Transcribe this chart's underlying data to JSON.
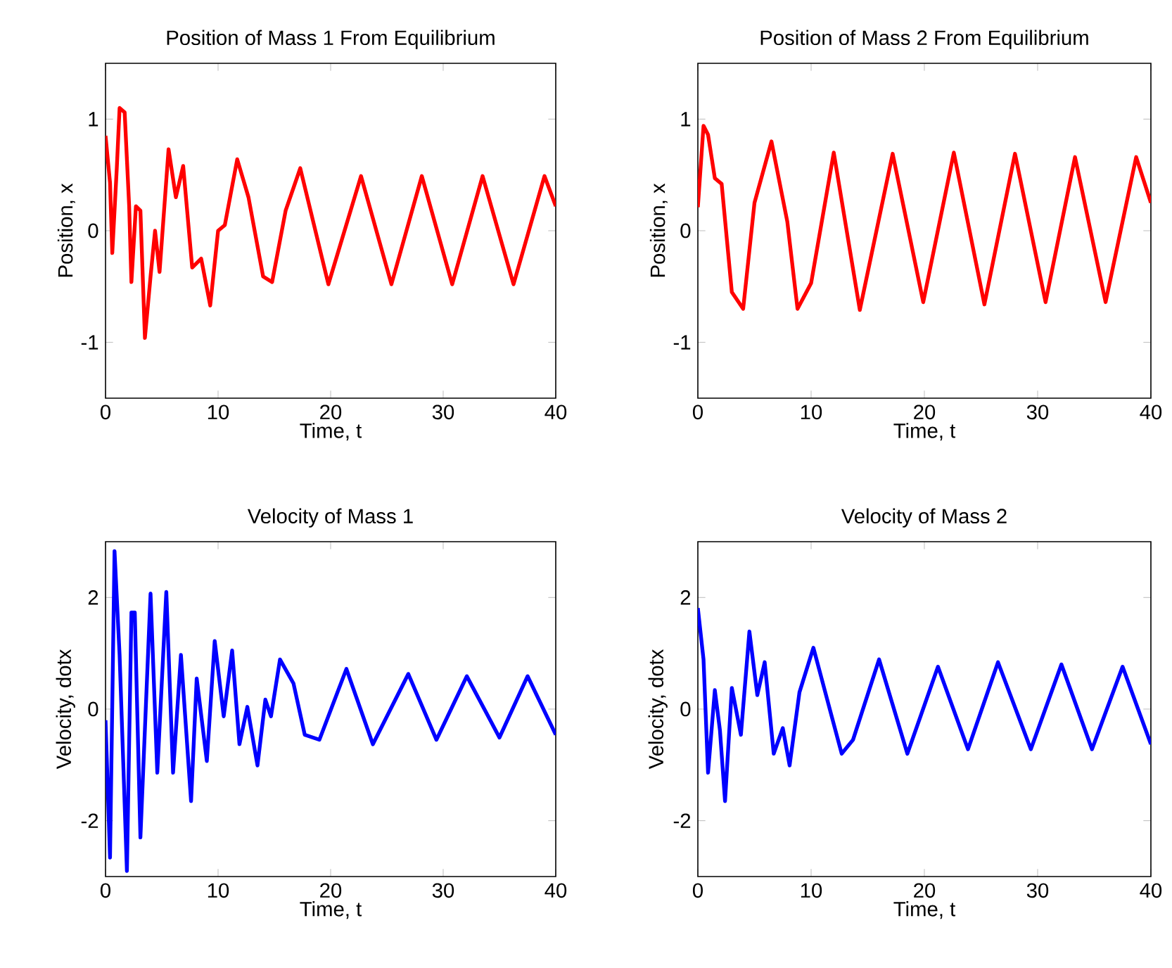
{
  "chart_data": [
    {
      "type": "line",
      "title": "Position of Mass 1 From Equilibrium",
      "xlabel": "Time, t",
      "ylabel": "Position, x",
      "color": "#ff0000",
      "xlim": [
        0,
        40
      ],
      "ylim": [
        -1.5,
        1.5
      ],
      "xticks": [
        0,
        10,
        20,
        30,
        40
      ],
      "yticks": [
        -1,
        0,
        1
      ],
      "x": [
        0,
        0.4,
        0.6,
        1.0,
        1.25,
        1.7,
        2.1,
        2.3,
        2.7,
        3.1,
        3.5,
        4.0,
        4.4,
        4.8,
        5.6,
        6.25,
        6.9,
        7.7,
        8.5,
        9.3,
        10,
        10.6,
        11.7,
        12.7,
        14,
        14.8,
        16,
        17.3,
        19.8,
        22.7,
        25.4,
        28.1,
        30.8,
        33.5,
        36.25,
        39,
        40
      ],
      "values": [
        0.85,
        0.43,
        -0.2,
        0.56,
        1.1,
        1.06,
        0.22,
        -0.46,
        0.22,
        0.18,
        -0.96,
        -0.41,
        0,
        -0.37,
        0.73,
        0.3,
        0.58,
        -0.33,
        -0.25,
        -0.67,
        0,
        0.05,
        0.64,
        0.3,
        -0.41,
        -0.46,
        0.18,
        0.56,
        -0.48,
        0.49,
        -0.48,
        0.49,
        -0.48,
        0.49,
        -0.48,
        0.49,
        0.22
      ]
    },
    {
      "type": "line",
      "title": "Position of Mass 2 From Equilibrium",
      "xlabel": "Time, t",
      "ylabel": "Position, x",
      "color": "#ff0000",
      "xlim": [
        0,
        40
      ],
      "ylim": [
        -1.5,
        1.5
      ],
      "xticks": [
        0,
        10,
        20,
        30,
        40
      ],
      "yticks": [
        -1,
        0,
        1
      ],
      "x": [
        0,
        0.5,
        0.9,
        1.5,
        2.1,
        3,
        4,
        5,
        6.5,
        7.9,
        8.8,
        10,
        12,
        14.3,
        17.2,
        19.9,
        22.6,
        25.3,
        28,
        30.7,
        33.3,
        36,
        38.7,
        40
      ],
      "values": [
        0.21,
        0.94,
        0.86,
        0.47,
        0.42,
        -0.55,
        -0.7,
        0.25,
        0.8,
        0.08,
        -0.7,
        -0.47,
        0.7,
        -0.71,
        0.69,
        -0.64,
        0.7,
        -0.66,
        0.69,
        -0.64,
        0.66,
        -0.64,
        0.66,
        0.25
      ]
    },
    {
      "type": "line",
      "title": "Velocity of Mass 1",
      "xlabel": "Time, t",
      "ylabel": "Velocity, dotx",
      "color": "#0000ff",
      "xlim": [
        0,
        40
      ],
      "ylim": [
        -3,
        3
      ],
      "xticks": [
        0,
        10,
        20,
        30,
        40
      ],
      "yticks": [
        -2,
        0,
        2
      ],
      "x": [
        0,
        0.4,
        0.8,
        1.25,
        1.9,
        2.3,
        2.6,
        3.1,
        4.0,
        4.6,
        5.4,
        6.0,
        6.7,
        7.6,
        8.1,
        9.0,
        9.7,
        10.5,
        11.25,
        11.9,
        12.6,
        13.5,
        14.2,
        14.7,
        15.5,
        16.7,
        17.7,
        19,
        21.4,
        23.75,
        26.9,
        29.4,
        32.1,
        35,
        37.5,
        40
      ],
      "values": [
        -0.2,
        -2.66,
        2.83,
        0.97,
        -2.9,
        1.73,
        1.73,
        -2.3,
        2.07,
        -1.14,
        2.1,
        -1.14,
        0.97,
        -1.65,
        0.55,
        -0.93,
        1.22,
        -0.13,
        1.05,
        -0.63,
        0.04,
        -1.01,
        0.17,
        -0.13,
        0.89,
        0.46,
        -0.46,
        -0.55,
        0.72,
        -0.63,
        0.63,
        -0.55,
        0.59,
        -0.51,
        0.59,
        -0.46
      ]
    },
    {
      "type": "line",
      "title": "Velocity of Mass 2",
      "xlabel": "Time, t",
      "ylabel": "Velocity, dotx",
      "color": "#0000ff",
      "xlim": [
        0,
        40
      ],
      "ylim": [
        -3,
        3
      ],
      "xticks": [
        0,
        10,
        20,
        30,
        40
      ],
      "yticks": [
        -2,
        0,
        2
      ],
      "x": [
        0,
        0.5,
        0.9,
        1.5,
        1.95,
        2.4,
        3,
        3.8,
        4.55,
        5.25,
        5.9,
        6.7,
        7.5,
        8.1,
        8.97,
        10.2,
        11.25,
        12.7,
        13.7,
        16,
        18.5,
        21.2,
        23.85,
        26.5,
        29.4,
        32.1,
        34.8,
        37.5,
        40
      ],
      "values": [
        1.81,
        0.89,
        -1.14,
        0.34,
        -0.38,
        -1.65,
        0.38,
        -0.46,
        1.39,
        0.25,
        0.84,
        -0.8,
        -0.34,
        -1.01,
        0.3,
        1.1,
        0.3,
        -0.8,
        -0.55,
        0.89,
        -0.8,
        0.76,
        -0.72,
        0.84,
        -0.72,
        0.8,
        -0.72,
        0.76,
        -0.63
      ]
    }
  ]
}
